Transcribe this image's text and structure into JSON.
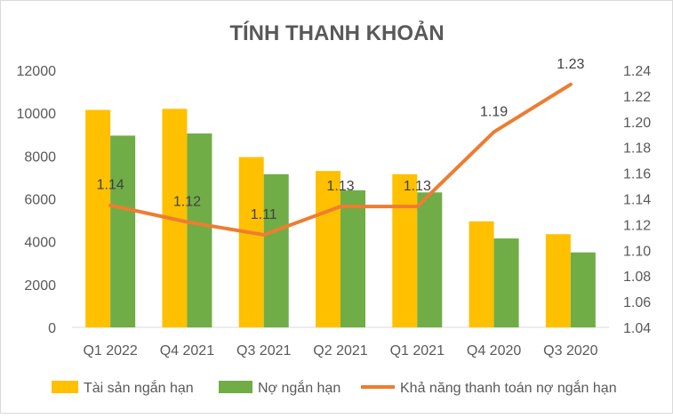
{
  "chart_data": {
    "type": "bar",
    "title": "TÍNH THANH KHOẢN",
    "categories": [
      "Q1 2022",
      "Q4 2021",
      "Q3 2021",
      "Q2 2021",
      "Q1 2021",
      "Q4 2020",
      "Q3 2020"
    ],
    "series": [
      {
        "name": "Tài sản ngắn hạn",
        "type": "bar",
        "axis": "left",
        "color": "#FFC000",
        "values": [
          10150,
          10200,
          7950,
          7300,
          7150,
          4950,
          4350
        ]
      },
      {
        "name": "Nợ ngắn hạn",
        "type": "bar",
        "axis": "left",
        "color": "#70AD47",
        "values": [
          8950,
          9050,
          7150,
          6400,
          6300,
          4150,
          3500
        ]
      },
      {
        "name": "Khả năng thanh toán nợ ngắn hạn",
        "type": "line",
        "axis": "right",
        "color": "#ED7D31",
        "values": [
          1.135,
          1.122,
          1.112,
          1.134,
          1.134,
          1.192,
          1.229
        ],
        "labels": [
          "1.14",
          "1.12",
          "1.11",
          "1.13",
          "1.13",
          "1.19",
          "1.23"
        ]
      }
    ],
    "y_left": {
      "ylim": [
        0,
        12000
      ],
      "ticks": [
        "0",
        "2000",
        "4000",
        "6000",
        "8000",
        "10000",
        "12000"
      ]
    },
    "y_right": {
      "ylim": [
        1.04,
        1.24
      ],
      "ticks": [
        "1.04",
        "1.06",
        "1.08",
        "1.10",
        "1.12",
        "1.14",
        "1.16",
        "1.18",
        "1.20",
        "1.22",
        "1.24"
      ]
    },
    "legend": "bottom",
    "grid": false
  }
}
